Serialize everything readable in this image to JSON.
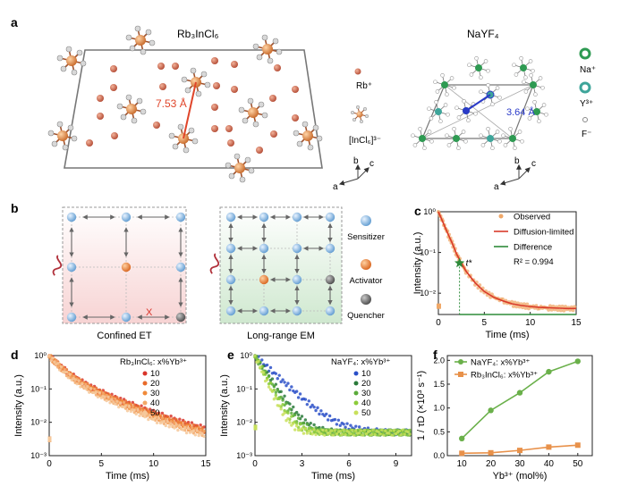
{
  "panel_a": {
    "label": "a",
    "left_title": "Rb₃InCl₆",
    "distance_left": "7.53 Å",
    "legend_rb": "Rb⁺",
    "legend_incl": "[InCl₆]³⁻",
    "right_title": "NaYF₄",
    "distance_right": "3.64 Å",
    "legend_na": "Na⁺",
    "legend_y": "Y³⁺",
    "legend_f": "F⁻",
    "axis_a": "a",
    "axis_b": "b",
    "axis_c": "c",
    "colors": {
      "rb": "#c8664a",
      "in": "#e08a4a",
      "cl": "#cccccc",
      "na": "#2e9a52",
      "y": "#3ea59a",
      "f": "#ffffff",
      "link": "#2a3ac8",
      "highlight": "#e0452a"
    }
  },
  "panel_b": {
    "label": "b",
    "left_caption": "Confined ET",
    "right_caption": "Long-range EM",
    "legend_sensitizer": "Sensitizer",
    "legend_activator": "Activator",
    "legend_quencher": "Quencher",
    "cross_mark": "X",
    "colors": {
      "sensitizer": "#7fb3df",
      "activator": "#e07a3a",
      "quencher": "#666666",
      "wave": "#b0303a"
    }
  },
  "chart_data": [
    {
      "panel": "c",
      "type": "scatter",
      "xlabel": "Time (ms)",
      "ylabel": "Intensity (a.u.)",
      "xlim": [
        0,
        15
      ],
      "ylim": [
        0.003,
        1
      ],
      "yscale": "log",
      "x_ticks": [
        "0",
        "5",
        "10",
        "15"
      ],
      "y_ticks": [
        "10⁰",
        "10⁻¹",
        "10⁻²"
      ],
      "legend_position": "top-right",
      "series": [
        {
          "name": "Observed",
          "color": "#f0a868",
          "x": [
            0,
            0.5,
            1,
            1.5,
            2,
            2.5,
            3,
            4,
            5,
            6,
            7,
            8,
            9,
            10,
            11,
            12,
            13,
            14,
            15
          ],
          "y": [
            1,
            0.55,
            0.3,
            0.17,
            0.09,
            0.055,
            0.035,
            0.018,
            0.011,
            0.008,
            0.0065,
            0.0055,
            0.005,
            0.0047,
            0.0045,
            0.0044,
            0.0043,
            0.0042,
            0.0042
          ]
        },
        {
          "name": "Diffusion-limited",
          "color": "#d93a2a",
          "x": [
            0,
            0.5,
            1,
            1.5,
            2,
            2.5,
            3,
            4,
            5,
            6,
            7,
            8,
            9,
            10,
            11,
            12,
            13,
            14,
            15
          ],
          "y": [
            1,
            0.55,
            0.3,
            0.17,
            0.09,
            0.055,
            0.035,
            0.018,
            0.011,
            0.008,
            0.0065,
            0.0055,
            0.005,
            0.0047,
            0.0045,
            0.0044,
            0.0043,
            0.0042,
            0.0042
          ]
        },
        {
          "name": "Difference",
          "color": "#2e8b3a",
          "x": [
            2.3,
            2.5,
            3,
            4,
            5,
            6,
            8,
            10,
            12,
            15
          ],
          "y": [
            0.003,
            0.0017,
            0.0016,
            0.0016,
            0.0016,
            0.0016,
            0.0016,
            0.0016,
            0.0016,
            0.0016
          ]
        }
      ],
      "annotations": [
        "t*",
        "R² = 0.994"
      ],
      "t_star": {
        "x": 2.3,
        "y": 0.055
      }
    },
    {
      "panel": "d",
      "type": "scatter",
      "xlabel": "Time (ms)",
      "ylabel": "Intensity (a.u.)",
      "xlim": [
        0,
        15
      ],
      "ylim": [
        0.001,
        1
      ],
      "yscale": "log",
      "x_ticks": [
        "0",
        "5",
        "10",
        "15"
      ],
      "y_ticks": [
        "10⁰",
        "10⁻¹",
        "10⁻²",
        "10⁻³"
      ],
      "legend_title": "Rb₃InCl₆: x%Yb³⁺",
      "legend_position": "top-right",
      "series": [
        {
          "name": "10",
          "color": "#d8342a",
          "tau": 1.35,
          "floor": 0.0022
        },
        {
          "name": "20",
          "color": "#e86a2a",
          "tau": 1.3,
          "floor": 0.0022
        },
        {
          "name": "30",
          "color": "#f08a3a",
          "tau": 1.25,
          "floor": 0.0022
        },
        {
          "name": "40",
          "color": "#f3a968",
          "tau": 1.2,
          "floor": 0.0022
        },
        {
          "name": "50",
          "color": "#f6c89a",
          "tau": 1.15,
          "floor": 0.0022
        }
      ]
    },
    {
      "panel": "e",
      "type": "scatter",
      "xlabel": "Time (ms)",
      "ylabel": "Intensity (a.u.)",
      "xlim": [
        0,
        10
      ],
      "ylim": [
        0.001,
        1
      ],
      "yscale": "log",
      "x_ticks": [
        "0",
        "3",
        "6",
        "9"
      ],
      "y_ticks": [
        "10⁰",
        "10⁻¹",
        "10⁻²",
        "10⁻³"
      ],
      "legend_title": "NaYF₄: x%Yb³⁺",
      "legend_position": "top-right",
      "series": [
        {
          "name": "10",
          "color": "#2a4fc8",
          "tau": 1.0,
          "floor": 0.005
        },
        {
          "name": "20",
          "color": "#2a7a3a",
          "tau": 0.62,
          "floor": 0.005
        },
        {
          "name": "30",
          "color": "#5aab3a",
          "tau": 0.55,
          "floor": 0.005
        },
        {
          "name": "40",
          "color": "#8ccb3a",
          "tau": 0.48,
          "floor": 0.005
        },
        {
          "name": "50",
          "color": "#c8e05a",
          "tau": 0.42,
          "floor": 0.005
        }
      ]
    },
    {
      "panel": "f",
      "type": "line",
      "xlabel": "Yb³⁺ (mol%)",
      "ylabel": "1 / τD (×10³ s⁻¹)",
      "xlim": [
        5,
        55
      ],
      "ylim": [
        0,
        2.1
      ],
      "x_ticks": [
        "10",
        "20",
        "30",
        "40",
        "50"
      ],
      "y_ticks": [
        "0.0",
        "0.5",
        "1.0",
        "1.5",
        "2.0"
      ],
      "legend_position": "top-left",
      "x": [
        10,
        20,
        30,
        40,
        50
      ],
      "series": [
        {
          "name": "NaYF₄: x%Yb³⁺",
          "color": "#6ab04a",
          "values": [
            0.36,
            0.95,
            1.32,
            1.76,
            1.98
          ]
        },
        {
          "name": "Rb₃InCl₆: x%Yb³⁺",
          "color": "#e8914a",
          "values": [
            0.05,
            0.06,
            0.11,
            0.18,
            0.22
          ]
        }
      ]
    }
  ]
}
